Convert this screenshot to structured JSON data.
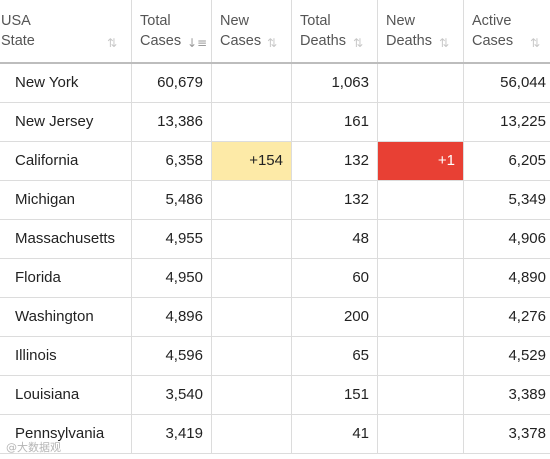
{
  "table": {
    "columns": [
      {
        "line1": "USA",
        "line2": "State",
        "sort_icon": "sort-arrows-icon",
        "sort_active": false
      },
      {
        "line1": "Total",
        "line2": "Cases",
        "sort_icon": "sort-desc-icon",
        "sort_active": true
      },
      {
        "line1": "New",
        "line2": "Cases",
        "sort_icon": "sort-arrows-icon",
        "sort_active": false
      },
      {
        "line1": "Total",
        "line2": "Deaths",
        "sort_icon": "sort-arrows-icon",
        "sort_active": false
      },
      {
        "line1": "New",
        "line2": "Deaths",
        "sort_icon": "sort-arrows-icon",
        "sort_active": false
      },
      {
        "line1": "Active",
        "line2": "Cases",
        "sort_icon": "sort-arrows-icon",
        "sort_active": false
      }
    ],
    "rows": [
      {
        "state": "New York",
        "total_cases": "60,679",
        "new_cases": "",
        "total_deaths": "1,063",
        "new_deaths": "",
        "active_cases": "56,044"
      },
      {
        "state": "New Jersey",
        "total_cases": "13,386",
        "new_cases": "",
        "total_deaths": "161",
        "new_deaths": "",
        "active_cases": "13,225"
      },
      {
        "state": "California",
        "total_cases": "6,358",
        "new_cases": "+154",
        "total_deaths": "132",
        "new_deaths": "+1",
        "active_cases": "6,205"
      },
      {
        "state": "Michigan",
        "total_cases": "5,486",
        "new_cases": "",
        "total_deaths": "132",
        "new_deaths": "",
        "active_cases": "5,349"
      },
      {
        "state": "Massachusetts",
        "total_cases": "4,955",
        "new_cases": "",
        "total_deaths": "48",
        "new_deaths": "",
        "active_cases": "4,906"
      },
      {
        "state": "Florida",
        "total_cases": "4,950",
        "new_cases": "",
        "total_deaths": "60",
        "new_deaths": "",
        "active_cases": "4,890"
      },
      {
        "state": "Washington",
        "total_cases": "4,896",
        "new_cases": "",
        "total_deaths": "200",
        "new_deaths": "",
        "active_cases": "4,276"
      },
      {
        "state": "Illinois",
        "total_cases": "4,596",
        "new_cases": "",
        "total_deaths": "65",
        "new_deaths": "",
        "active_cases": "4,529"
      },
      {
        "state": "Louisiana",
        "total_cases": "3,540",
        "new_cases": "",
        "total_deaths": "151",
        "new_deaths": "",
        "active_cases": "3,389"
      },
      {
        "state": "Pennsylvania",
        "total_cases": "3,419",
        "new_cases": "",
        "total_deaths": "41",
        "new_deaths": "",
        "active_cases": "3,378"
      }
    ],
    "highlight_colors": {
      "new_cases": "#fdeaa7",
      "new_deaths": "#e84034"
    }
  },
  "watermark": {
    "text": "@大数据观"
  }
}
